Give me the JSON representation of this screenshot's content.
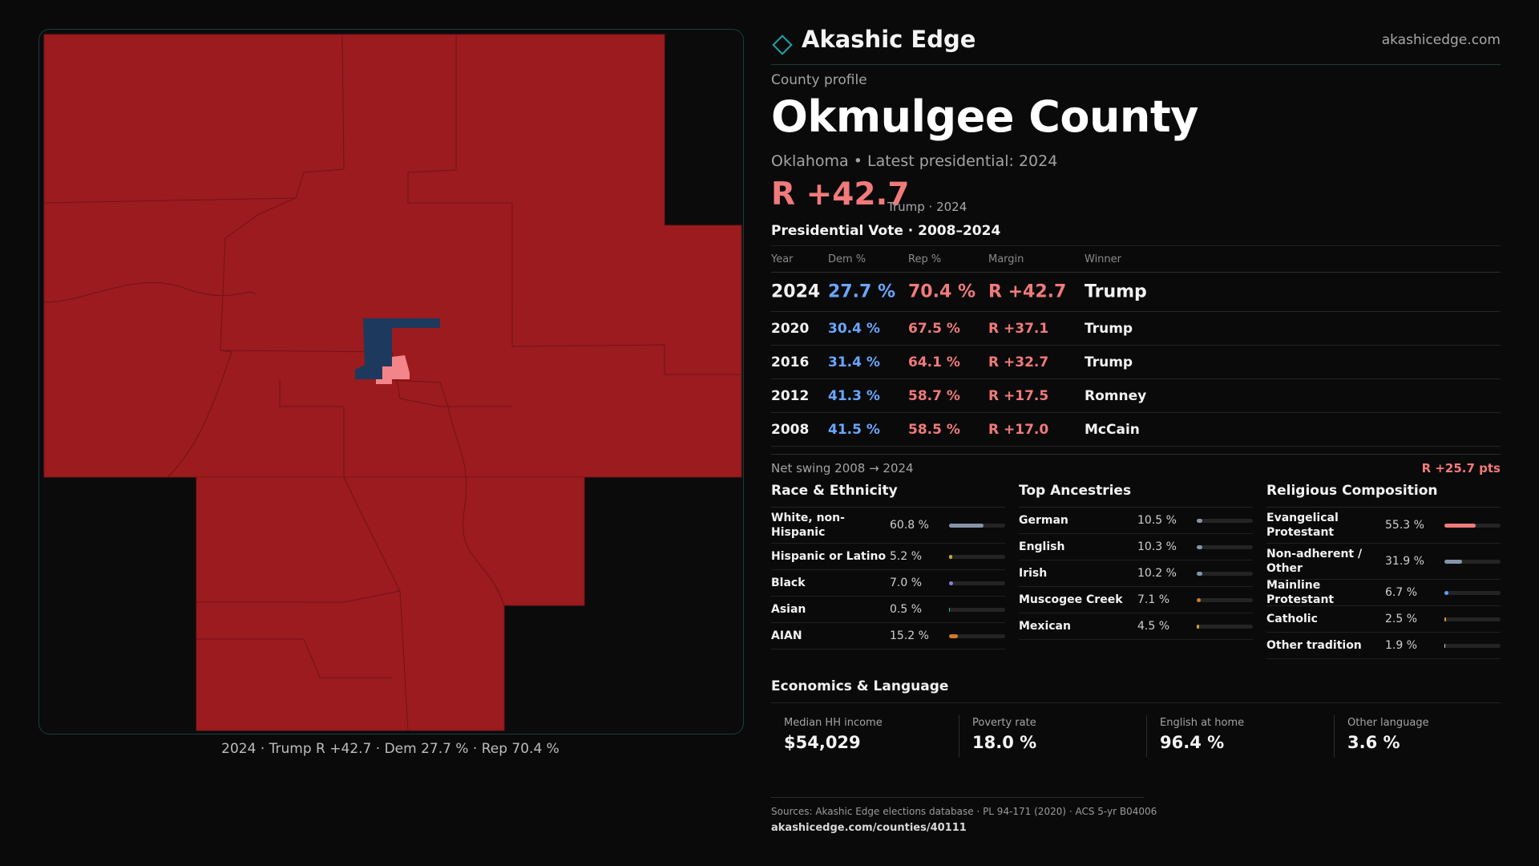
{
  "brand": {
    "name": "Akashic Edge",
    "url": "akashicedge.com",
    "accent": "#1aa3a8"
  },
  "profile": {
    "eyebrow": "County profile",
    "county": "Okmulgee County",
    "subtitle": "Oklahoma • Latest presidential: 2024",
    "margin": "R +42.7",
    "margin_note": "Trump · 2024"
  },
  "vote": {
    "title": "Presidential Vote · 2008–2024",
    "headers": {
      "year": "Year",
      "dem": "Dem %",
      "rep": "Rep %",
      "margin": "Margin",
      "winner": "Winner"
    },
    "rows": [
      {
        "year": "2024",
        "dem": "27.7 %",
        "rep": "70.4 %",
        "margin": "R +42.7",
        "winner": "Trump"
      },
      {
        "year": "2020",
        "dem": "30.4 %",
        "rep": "67.5 %",
        "margin": "R +37.1",
        "winner": "Trump"
      },
      {
        "year": "2016",
        "dem": "31.4 %",
        "rep": "64.1 %",
        "margin": "R +32.7",
        "winner": "Trump"
      },
      {
        "year": "2012",
        "dem": "41.3 %",
        "rep": "58.7 %",
        "margin": "R +17.5",
        "winner": "Romney"
      },
      {
        "year": "2008",
        "dem": "41.5 %",
        "rep": "58.5 %",
        "margin": "R +17.0",
        "winner": "McCain"
      }
    ],
    "swing_label": "Net swing 2008 → 2024",
    "swing_value": "R +25.7 pts"
  },
  "race": {
    "title": "Race & Ethnicity",
    "items": [
      {
        "label": "White, non-Hispanic",
        "pct": "60.8 %",
        "value": 60.8,
        "color": "#8794a8"
      },
      {
        "label": "Hispanic or Latino",
        "pct": "5.2 %",
        "value": 5.2,
        "color": "#d4a02a"
      },
      {
        "label": "Black",
        "pct": "7.0 %",
        "value": 7.0,
        "color": "#8d7be0"
      },
      {
        "label": "Asian",
        "pct": "0.5 %",
        "value": 0.5,
        "color": "#3bb3a0"
      },
      {
        "label": "AIAN",
        "pct": "15.2 %",
        "value": 15.2,
        "color": "#d27a2a"
      }
    ]
  },
  "ancestry": {
    "title": "Top Ancestries",
    "items": [
      {
        "label": "German",
        "pct": "10.5 %",
        "value": 10.5,
        "color": "#8794a8"
      },
      {
        "label": "English",
        "pct": "10.3 %",
        "value": 10.3,
        "color": "#8794a8"
      },
      {
        "label": "Irish",
        "pct": "10.2 %",
        "value": 10.2,
        "color": "#8794a8"
      },
      {
        "label": "Muscogee Creek",
        "pct": "7.1 %",
        "value": 7.1,
        "color": "#d27a2a"
      },
      {
        "label": "Mexican",
        "pct": "4.5 %",
        "value": 4.5,
        "color": "#d4a02a"
      }
    ]
  },
  "religion": {
    "title": "Religious Composition",
    "items": [
      {
        "label": "Evangelical Protestant",
        "pct": "55.3 %",
        "value": 55.3,
        "color": "#f17a7a"
      },
      {
        "label": "Non-adherent / Other",
        "pct": "31.9 %",
        "value": 31.9,
        "color": "#8794a8"
      },
      {
        "label": "Mainline Protestant",
        "pct": "6.7 %",
        "value": 6.7,
        "color": "#5a9cf0"
      },
      {
        "label": "Catholic",
        "pct": "2.5 %",
        "value": 2.5,
        "color": "#d4a02a"
      },
      {
        "label": "Other tradition",
        "pct": "1.9 %",
        "value": 1.9,
        "color": "#cfcfcf"
      }
    ]
  },
  "economics": {
    "title": "Economics & Language",
    "cards": [
      {
        "label": "Median HH income",
        "value": "$54,029"
      },
      {
        "label": "Poverty rate",
        "value": "18.0 %"
      },
      {
        "label": "English at home",
        "value": "96.4 %"
      },
      {
        "label": "Other language",
        "value": "3.6 %"
      }
    ]
  },
  "map": {
    "caption": "2024 · Trump R +42.7 · Dem 27.7 % · Rep 70.4 %",
    "colors": {
      "rep_strong": "#9b1b1e",
      "rep_light": "#f3858a",
      "dem": "#1d3a5e"
    }
  },
  "footer": {
    "sources": "Sources: Akashic Edge elections database · PL 94-171 (2020) · ACS 5-yr B04006",
    "link": "akashicedge.com/counties/40111"
  }
}
